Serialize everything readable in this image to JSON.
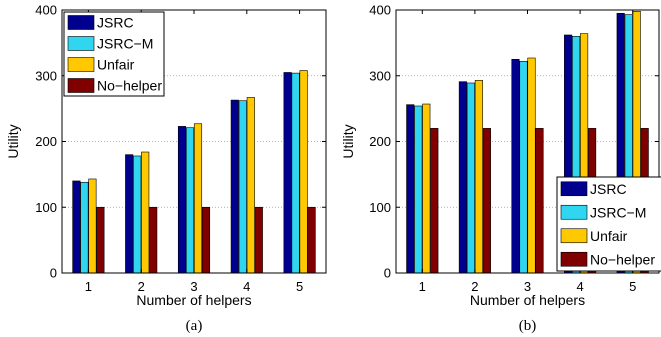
{
  "chart_data": [
    {
      "type": "bar",
      "caption": "(a)",
      "xlabel": "Number of helpers",
      "ylabel": "Utility",
      "ylim": [
        0,
        400
      ],
      "yticks": [
        "0",
        "100",
        "200",
        "300",
        "400"
      ],
      "categories": [
        "1",
        "2",
        "3",
        "4",
        "5"
      ],
      "grid": "horizontal dotted",
      "legend_position": "top-left",
      "series": [
        {
          "name": "JSRC",
          "color": "#00008f",
          "values": [
            140,
            180,
            223,
            263,
            305
          ]
        },
        {
          "name": "JSRC−M",
          "color": "#30d5f0",
          "values": [
            138,
            178,
            221,
            262,
            304
          ]
        },
        {
          "name": "Unfair",
          "color": "#ffc800",
          "values": [
            143,
            184,
            227,
            267,
            308
          ]
        },
        {
          "name": "No−helper",
          "color": "#800000",
          "values": [
            100,
            100,
            100,
            100,
            100
          ]
        }
      ]
    },
    {
      "type": "bar",
      "caption": "(b)",
      "xlabel": "Number of helpers",
      "ylabel": "Utility",
      "ylim": [
        0,
        400
      ],
      "yticks": [
        "0",
        "100",
        "200",
        "300",
        "400"
      ],
      "categories": [
        "1",
        "2",
        "3",
        "4",
        "5"
      ],
      "grid": "horizontal dotted",
      "legend_position": "bottom-right",
      "series": [
        {
          "name": "JSRC",
          "color": "#00008f",
          "values": [
            256,
            291,
            325,
            362,
            395
          ]
        },
        {
          "name": "JSRC−M",
          "color": "#30d5f0",
          "values": [
            254,
            289,
            322,
            360,
            393
          ]
        },
        {
          "name": "Unfair",
          "color": "#ffc800",
          "values": [
            257,
            293,
            327,
            364,
            398
          ]
        },
        {
          "name": "No−helper",
          "color": "#800000",
          "values": [
            220,
            220,
            220,
            220,
            220
          ]
        }
      ]
    }
  ]
}
